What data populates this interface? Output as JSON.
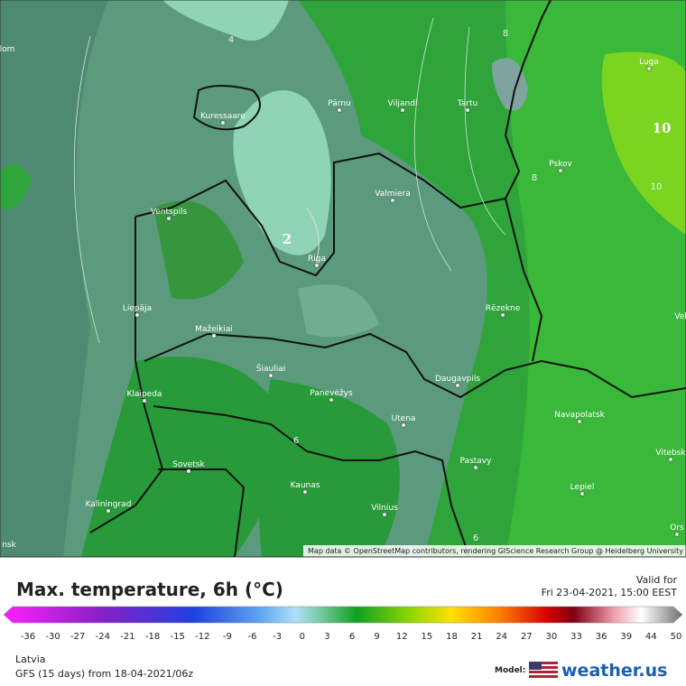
{
  "map": {
    "attribution": "Map data © OpenStreetMap contributors, rendering GIScience Research Group @ Heidelberg University",
    "cities": [
      "Kuressaare",
      "Pärnu",
      "Viljandi",
      "Tartu",
      "Luga",
      "Pskov",
      "Ventspils",
      "Valmiera",
      "Riga",
      "Liepāja",
      "Rēzekne",
      "Mažeikiai",
      "Šiauliai",
      "Klaipeda",
      "Panevėžys",
      "Daugavpils",
      "Utena",
      "Navapolatsk",
      "Vitebsk",
      "Sovetsk",
      "Pastavy",
      "Kaunas",
      "Lepiel",
      "Kaliningrad",
      "Vilnius",
      "Ors",
      "Vel",
      "nsk",
      "lom"
    ],
    "contour_labels": [
      "2",
      "10",
      "8",
      "6",
      "4",
      "8",
      "10",
      "6"
    ]
  },
  "footer": {
    "title": "Max. temperature, 6h (°C)",
    "valid_label": "Valid for",
    "valid_time": "Fri 23-04-2021, 15:00 EEST",
    "legend_ticks": [
      -36,
      -30,
      -27,
      -24,
      -21,
      -18,
      -15,
      -12,
      -9,
      -6,
      -3,
      0,
      3,
      6,
      9,
      12,
      15,
      18,
      21,
      24,
      27,
      30,
      33,
      36,
      39,
      44,
      50
    ],
    "region": "Latvia",
    "model_run": "GFS (15 days) from 18-04-2021/06z",
    "model_label": "Model:",
    "logo": "weather.us"
  }
}
